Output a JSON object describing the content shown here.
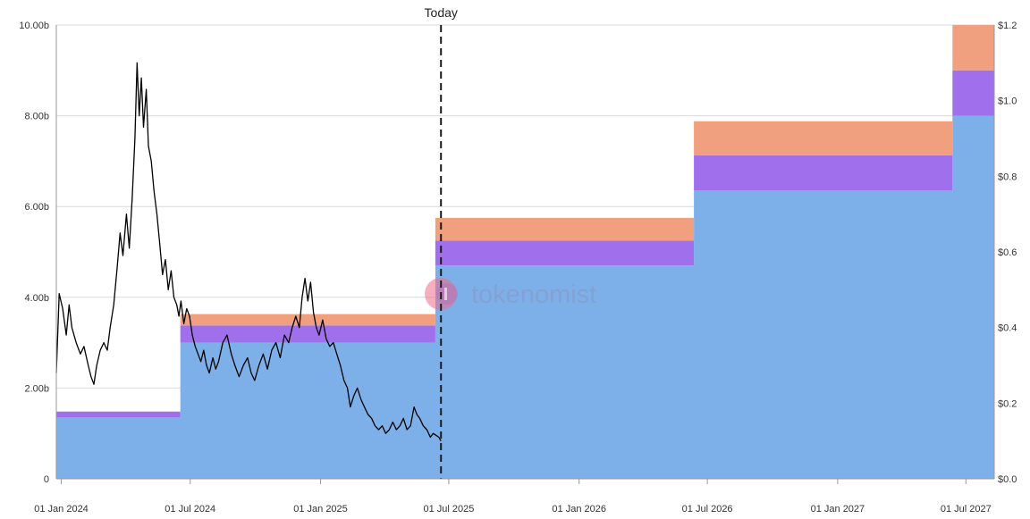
{
  "chart_data": {
    "type": "area",
    "stacked": true,
    "step": true,
    "x_tick_labels": [
      "01 Jan 2024",
      "01 Jul 2024",
      "01 Jan 2025",
      "01 Jul 2025",
      "01 Jan 2026",
      "01 Jul 2026",
      "01 Jan 2027",
      "01 Jul 2027"
    ],
    "x_range": [
      "2023-12-25",
      "2027-08-10"
    ],
    "y_left": {
      "ticks": [
        "0",
        "2.00b",
        "4.00b",
        "6.00b",
        "8.00b",
        "10.00b"
      ],
      "range": [
        0,
        10
      ]
    },
    "y_right": {
      "ticks": [
        "$0.0",
        "$0.2",
        "$0.4",
        "$0.6",
        "$0.8",
        "$1.0",
        "$1.2"
      ],
      "range": [
        0,
        1.2
      ]
    },
    "grid": true,
    "today": {
      "label": "Today",
      "date": "2025-06-20"
    },
    "step_dates": [
      "2023-12-25",
      "2024-06-17",
      "2025-06-12",
      "2026-06-12",
      "2027-06-12",
      "2027-08-10"
    ],
    "series": [
      {
        "color": "#7db0e8",
        "values": [
          1.35,
          3.0,
          4.7,
          6.35,
          8.0
        ]
      },
      {
        "color": "#a070ec",
        "values": [
          0.13,
          0.38,
          0.55,
          0.78,
          1.0
        ]
      },
      {
        "color": "#f0a07e",
        "values": [
          0.0,
          0.25,
          0.5,
          0.75,
          1.0
        ]
      }
    ],
    "price_series": {
      "color": "#000000",
      "axis": "right",
      "points": [
        [
          "2023-12-25",
          0.28
        ],
        [
          "2023-12-29",
          0.49
        ],
        [
          "2024-01-03",
          0.45
        ],
        [
          "2024-01-08",
          0.38
        ],
        [
          "2024-01-12",
          0.46
        ],
        [
          "2024-01-16",
          0.4
        ],
        [
          "2024-01-22",
          0.36
        ],
        [
          "2024-01-28",
          0.33
        ],
        [
          "2024-02-02",
          0.35
        ],
        [
          "2024-02-08",
          0.3
        ],
        [
          "2024-02-12",
          0.27
        ],
        [
          "2024-02-16",
          0.25
        ],
        [
          "2024-02-20",
          0.3
        ],
        [
          "2024-02-25",
          0.34
        ],
        [
          "2024-03-01",
          0.36
        ],
        [
          "2024-03-06",
          0.34
        ],
        [
          "2024-03-10",
          0.4
        ],
        [
          "2024-03-15",
          0.46
        ],
        [
          "2024-03-20",
          0.56
        ],
        [
          "2024-03-24",
          0.65
        ],
        [
          "2024-03-28",
          0.59
        ],
        [
          "2024-04-02",
          0.7
        ],
        [
          "2024-04-06",
          0.61
        ],
        [
          "2024-04-10",
          0.74
        ],
        [
          "2024-04-14",
          0.9
        ],
        [
          "2024-04-17",
          1.1
        ],
        [
          "2024-04-20",
          0.96
        ],
        [
          "2024-04-23",
          1.06
        ],
        [
          "2024-04-26",
          0.93
        ],
        [
          "2024-04-30",
          1.03
        ],
        [
          "2024-05-03",
          0.88
        ],
        [
          "2024-05-07",
          0.84
        ],
        [
          "2024-05-11",
          0.76
        ],
        [
          "2024-05-15",
          0.7
        ],
        [
          "2024-05-19",
          0.62
        ],
        [
          "2024-05-23",
          0.54
        ],
        [
          "2024-05-27",
          0.58
        ],
        [
          "2024-05-31",
          0.5
        ],
        [
          "2024-06-04",
          0.55
        ],
        [
          "2024-06-08",
          0.48
        ],
        [
          "2024-06-12",
          0.46
        ],
        [
          "2024-06-15",
          0.43
        ],
        [
          "2024-06-18",
          0.47
        ],
        [
          "2024-06-22",
          0.41
        ],
        [
          "2024-06-26",
          0.45
        ],
        [
          "2024-06-30",
          0.43
        ],
        [
          "2024-07-04",
          0.38
        ],
        [
          "2024-07-08",
          0.35
        ],
        [
          "2024-07-12",
          0.33
        ],
        [
          "2024-07-16",
          0.31
        ],
        [
          "2024-07-20",
          0.34
        ],
        [
          "2024-07-24",
          0.3
        ],
        [
          "2024-07-28",
          0.28
        ],
        [
          "2024-08-02",
          0.32
        ],
        [
          "2024-08-06",
          0.29
        ],
        [
          "2024-08-10",
          0.31
        ],
        [
          "2024-08-16",
          0.36
        ],
        [
          "2024-08-22",
          0.38
        ],
        [
          "2024-08-28",
          0.33
        ],
        [
          "2024-09-02",
          0.3
        ],
        [
          "2024-09-08",
          0.27
        ],
        [
          "2024-09-14",
          0.3
        ],
        [
          "2024-09-20",
          0.32
        ],
        [
          "2024-09-25",
          0.28
        ],
        [
          "2024-09-30",
          0.26
        ],
        [
          "2024-10-06",
          0.3
        ],
        [
          "2024-10-12",
          0.33
        ],
        [
          "2024-10-18",
          0.29
        ],
        [
          "2024-10-24",
          0.34
        ],
        [
          "2024-10-30",
          0.36
        ],
        [
          "2024-11-05",
          0.32
        ],
        [
          "2024-11-11",
          0.38
        ],
        [
          "2024-11-17",
          0.36
        ],
        [
          "2024-11-22",
          0.4
        ],
        [
          "2024-11-27",
          0.43
        ],
        [
          "2024-12-02",
          0.4
        ],
        [
          "2024-12-06",
          0.48
        ],
        [
          "2024-12-10",
          0.53
        ],
        [
          "2024-12-14",
          0.47
        ],
        [
          "2024-12-18",
          0.52
        ],
        [
          "2024-12-22",
          0.44
        ],
        [
          "2024-12-26",
          0.4
        ],
        [
          "2024-12-30",
          0.38
        ],
        [
          "2025-01-04",
          0.42
        ],
        [
          "2025-01-09",
          0.37
        ],
        [
          "2025-01-14",
          0.35
        ],
        [
          "2025-01-19",
          0.36
        ],
        [
          "2025-01-24",
          0.33
        ],
        [
          "2025-01-29",
          0.3
        ],
        [
          "2025-02-03",
          0.26
        ],
        [
          "2025-02-08",
          0.24
        ],
        [
          "2025-02-12",
          0.19
        ],
        [
          "2025-02-17",
          0.22
        ],
        [
          "2025-02-22",
          0.24
        ],
        [
          "2025-02-27",
          0.21
        ],
        [
          "2025-03-04",
          0.19
        ],
        [
          "2025-03-09",
          0.17
        ],
        [
          "2025-03-14",
          0.16
        ],
        [
          "2025-03-19",
          0.14
        ],
        [
          "2025-03-24",
          0.13
        ],
        [
          "2025-03-29",
          0.14
        ],
        [
          "2025-04-03",
          0.12
        ],
        [
          "2025-04-08",
          0.13
        ],
        [
          "2025-04-13",
          0.15
        ],
        [
          "2025-04-18",
          0.13
        ],
        [
          "2025-04-23",
          0.14
        ],
        [
          "2025-04-28",
          0.16
        ],
        [
          "2025-05-03",
          0.13
        ],
        [
          "2025-05-08",
          0.14
        ],
        [
          "2025-05-13",
          0.19
        ],
        [
          "2025-05-17",
          0.17
        ],
        [
          "2025-05-21",
          0.16
        ],
        [
          "2025-05-26",
          0.14
        ],
        [
          "2025-05-31",
          0.13
        ],
        [
          "2025-06-05",
          0.11
        ],
        [
          "2025-06-09",
          0.12
        ],
        [
          "2025-06-13",
          0.115
        ],
        [
          "2025-06-17",
          0.11
        ],
        [
          "2025-06-20",
          0.1
        ]
      ]
    },
    "watermark": "tokenomist"
  }
}
